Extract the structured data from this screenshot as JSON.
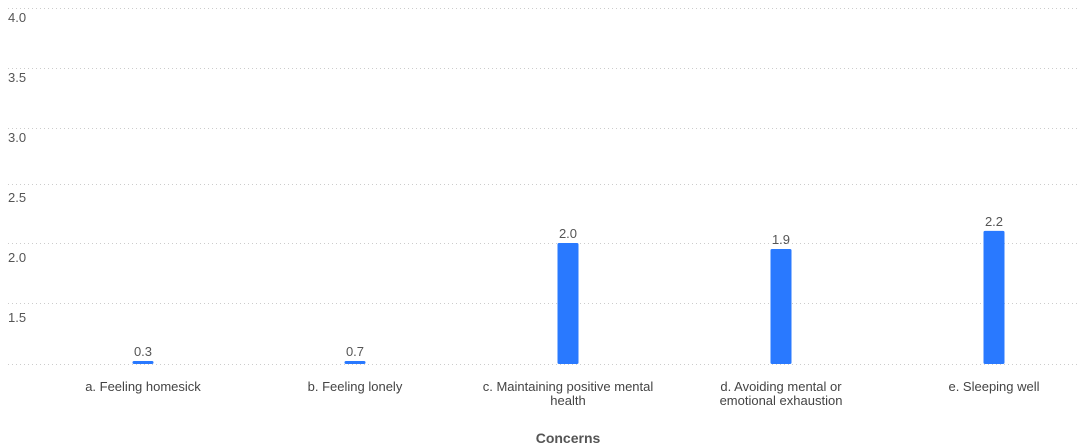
{
  "chart_data": {
    "type": "bar",
    "categories": [
      "a. Feeling homesick",
      "b. Feeling lonely",
      "c. Maintaining positive mental health",
      "d. Avoiding mental or emotional exhaustion",
      "e. Sleeping well"
    ],
    "category_label_lines": [
      [
        "a. Feeling homesick"
      ],
      [
        "b. Feeling lonely"
      ],
      [
        "c. Maintaining positive mental",
        "health"
      ],
      [
        "d. Avoiding mental or",
        "emotional exhaustion"
      ],
      [
        "e. Sleeping well"
      ]
    ],
    "values": [
      0.3,
      0.7,
      2.0,
      1.9,
      2.2
    ],
    "data_labels": [
      "0.3",
      "0.7",
      "2.0",
      "1.9",
      "2.2"
    ],
    "y_ticks": [
      "4.0",
      "3.5",
      "3.0",
      "2.5",
      "2.0",
      "1.5"
    ],
    "xlabel": "Concerns",
    "ylabel": "",
    "grid": true,
    "bar_color": "#2979ff"
  }
}
